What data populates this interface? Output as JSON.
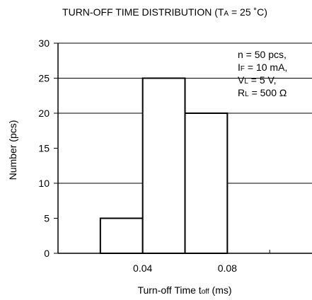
{
  "chart_data": {
    "type": "bar",
    "title": "TURN-OFF TIME DISTRIBUTION (T",
    "title_sub": "A",
    "title_rest": " = 25 ˚C)",
    "xlabel": "Turn-off Time t",
    "xlabel_sub": "off",
    "xlabel_rest": " (ms)",
    "ylabel": "Number (pcs)",
    "xlim": [
      0.0,
      0.12
    ],
    "ylim": [
      0,
      30
    ],
    "yticks": [
      0,
      5,
      10,
      15,
      20,
      25,
      30
    ],
    "ytick_labels": [
      "0",
      "5",
      "10",
      "15",
      "20",
      "25",
      "30"
    ],
    "xticks": [
      0.04,
      0.08
    ],
    "xtick_labels": [
      "0.04",
      "0.08"
    ],
    "minor_xticks": [
      0.02,
      0.06,
      0.1
    ],
    "grid_y": [
      10,
      20,
      25
    ],
    "bars": [
      {
        "x0": 0.02,
        "x1": 0.04,
        "value": 5
      },
      {
        "x0": 0.04,
        "x1": 0.06,
        "value": 25
      },
      {
        "x0": 0.06,
        "x1": 0.08,
        "value": 20
      }
    ],
    "annotation": [
      {
        "main": "n = 50 pcs,",
        "sub": "",
        "rest": ""
      },
      {
        "main": "I",
        "sub": "F",
        "rest": " = 10 mA,"
      },
      {
        "main": "V",
        "sub": "L",
        "rest": " = 5 V,"
      },
      {
        "main": "R",
        "sub": "L",
        "rest": " = 500 Ω"
      }
    ],
    "colors": {
      "axis": "#000000",
      "bar_fill": "#ffffff",
      "bar_stroke": "#000000"
    }
  }
}
